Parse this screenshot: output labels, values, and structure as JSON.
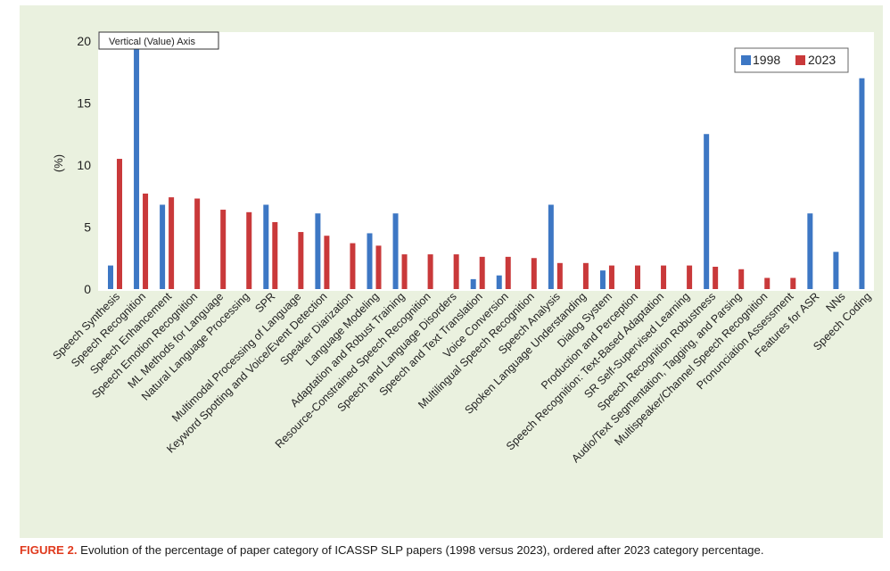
{
  "chart_data": {
    "type": "bar",
    "ylabel": "(%)",
    "ylim": [
      0,
      20
    ],
    "yticks": [
      0,
      5,
      10,
      15,
      20
    ],
    "axis_tooltip": "Vertical (Value) Axis",
    "legend_position": "top-right",
    "categories": [
      "Speech Synthesis",
      "Speech Recognition",
      "Speech Enhancement",
      "Speech Emotion Recognition",
      "ML Methods for Language",
      "Natural Language Processing",
      "SPR",
      "Multimodal Processing of Language",
      "Keyword Spotting and Voice/Event Detection",
      "Speaker Diarization",
      "Language Modeling",
      "Adaptation and Robust Training",
      "Resource-Constrained Speech Recognition",
      "Speech and Language Disorders",
      "Speech and Text Translation",
      "Voice Conversion",
      "Multilingual Speech Recognition",
      "Speech Analysis",
      "Spoken Language Understanding",
      "Dialog System",
      "Production and Perception",
      "Speech Recognition: Text-Based Adaptation",
      "SR Self-Supervised Learning",
      "Speech Recognition Robustness",
      "Audio/Text Segmentation, Tagging, and Parsing",
      "Multispeaker/Channel Speech Recognition",
      "Pronunciation Assessment",
      "Features for ASR",
      "NNs",
      "Speech Coding"
    ],
    "series": [
      {
        "name": "1998",
        "color": "#3d77c4",
        "values": [
          1.9,
          20.5,
          6.8,
          0,
          0,
          0,
          6.8,
          0,
          6.1,
          0,
          4.5,
          6.1,
          0,
          0,
          0.8,
          1.1,
          0,
          6.8,
          0,
          1.5,
          0,
          0,
          0,
          12.5,
          0,
          0,
          0,
          6.1,
          3.0,
          17.0
        ]
      },
      {
        "name": "2023",
        "color": "#c9393a",
        "values": [
          10.5,
          7.7,
          7.4,
          7.3,
          6.4,
          6.2,
          5.4,
          4.6,
          4.3,
          3.7,
          3.5,
          2.8,
          2.8,
          2.8,
          2.6,
          2.6,
          2.5,
          2.1,
          2.1,
          1.9,
          1.9,
          1.9,
          1.9,
          1.8,
          1.6,
          0.9,
          0.9,
          0,
          0,
          0
        ]
      }
    ]
  },
  "caption": {
    "label": "FIGURE 2.",
    "text": " Evolution of the percentage of paper category of ICASSP SLP papers (1998 versus 2023), ordered after 2023 category percentage."
  }
}
